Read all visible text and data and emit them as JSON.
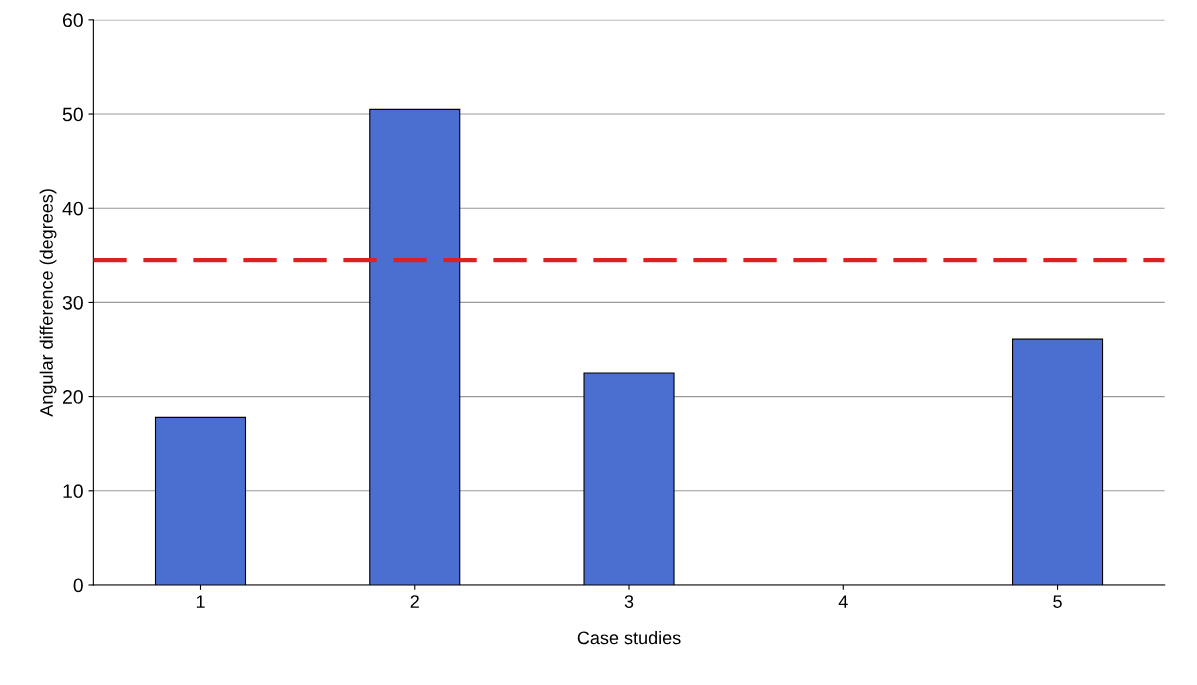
{
  "chart_data": {
    "type": "bar",
    "xlabel": "Case studies",
    "ylabel": "Angular difference (degrees)",
    "categories": [
      "1",
      "2",
      "3",
      "4",
      "5"
    ],
    "values": [
      17.8,
      50.5,
      22.5,
      null,
      26.1
    ],
    "color": "#4a6fd0",
    "ylim": [
      0,
      60
    ],
    "yticks": [
      0,
      10,
      20,
      30,
      40,
      50,
      60
    ],
    "grid": "y",
    "ref_lines": [
      {
        "axis": "y",
        "value": 34.5,
        "color": "#e02020",
        "line_style": "dashed"
      }
    ]
  }
}
